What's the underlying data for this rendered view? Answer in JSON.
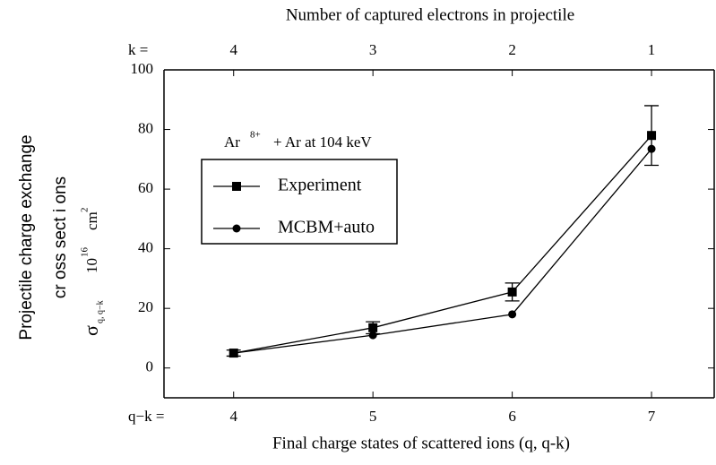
{
  "chart_data": {
    "type": "line",
    "top_axis_label": "Number of captured electrons in projectile",
    "xlabel": "Final charge states of scattered ions (q, q-k)",
    "ylabel": {
      "line1": "Projectile charge exchange",
      "line2": "cr oss sect i ons",
      "symbol": "σ",
      "symbol_sub": "q, q−k",
      "unit_base": "10",
      "unit_exp": "16",
      "unit": "cm",
      "unit_unit_exp": "2"
    },
    "annotation": {
      "ion": "Ar",
      "charge": "8+",
      "rest": "+ Ar at 104 keV"
    },
    "x_prefix": "q−k =",
    "x2_prefix": "k =",
    "x": [
      4,
      5,
      6,
      7
    ],
    "series": [
      {
        "name": "Experiment",
        "color": "#000000",
        "marker": "square",
        "values": [
          5,
          13.5,
          25.5,
          78
        ],
        "errors": [
          1,
          2,
          3,
          10
        ]
      },
      {
        "name": "MCBM+auto",
        "color": "#000000",
        "marker": "circle",
        "values": [
          5,
          11,
          18,
          73.5
        ]
      }
    ],
    "xlim": [
      3.5,
      7.45
    ],
    "xticks": [
      4,
      5,
      6,
      7
    ],
    "x2ticks": [
      4,
      {
        "value": 5,
        "label": "3"
      },
      {
        "value": 6,
        "label": "2"
      },
      {
        "value": 7,
        "label": "1"
      }
    ],
    "ylim": [
      -10,
      100
    ],
    "yticks": [
      0,
      20,
      40,
      60,
      80,
      100
    ]
  }
}
